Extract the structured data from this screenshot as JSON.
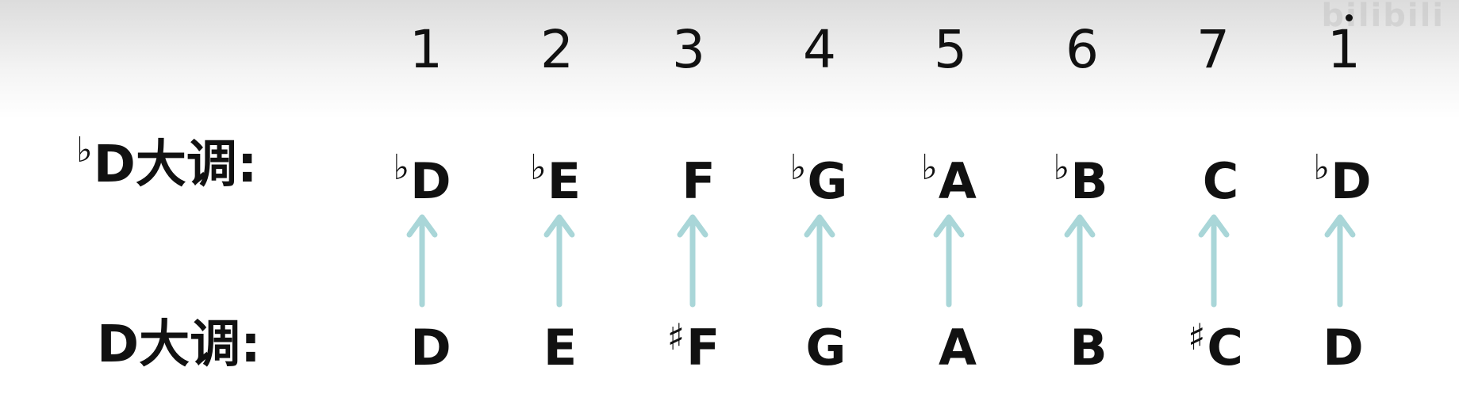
{
  "watermark": "bilibili",
  "degrees": [
    "1",
    "2",
    "3",
    "4",
    "5",
    "6",
    "7",
    "1"
  ],
  "top_row": {
    "label_accidental": "♭",
    "label_text": "D大调:",
    "notes": [
      {
        "acc": "♭",
        "name": "D"
      },
      {
        "acc": "♭",
        "name": "E"
      },
      {
        "acc": "",
        "name": "F"
      },
      {
        "acc": "♭",
        "name": "G"
      },
      {
        "acc": "♭",
        "name": "A"
      },
      {
        "acc": "♭",
        "name": "B"
      },
      {
        "acc": "",
        "name": "C"
      },
      {
        "acc": "♭",
        "name": "D"
      }
    ]
  },
  "bottom_row": {
    "label_text": "D大调:",
    "notes": [
      {
        "acc": "",
        "name": "D"
      },
      {
        "acc": "",
        "name": "E"
      },
      {
        "acc": "♯",
        "name": "F"
      },
      {
        "acc": "",
        "name": "G"
      },
      {
        "acc": "",
        "name": "A"
      },
      {
        "acc": "",
        "name": "B"
      },
      {
        "acc": "♯",
        "name": "C"
      },
      {
        "acc": "",
        "name": "D"
      }
    ]
  },
  "colors": {
    "arrow": "#a9d6d8",
    "text": "#111111"
  }
}
